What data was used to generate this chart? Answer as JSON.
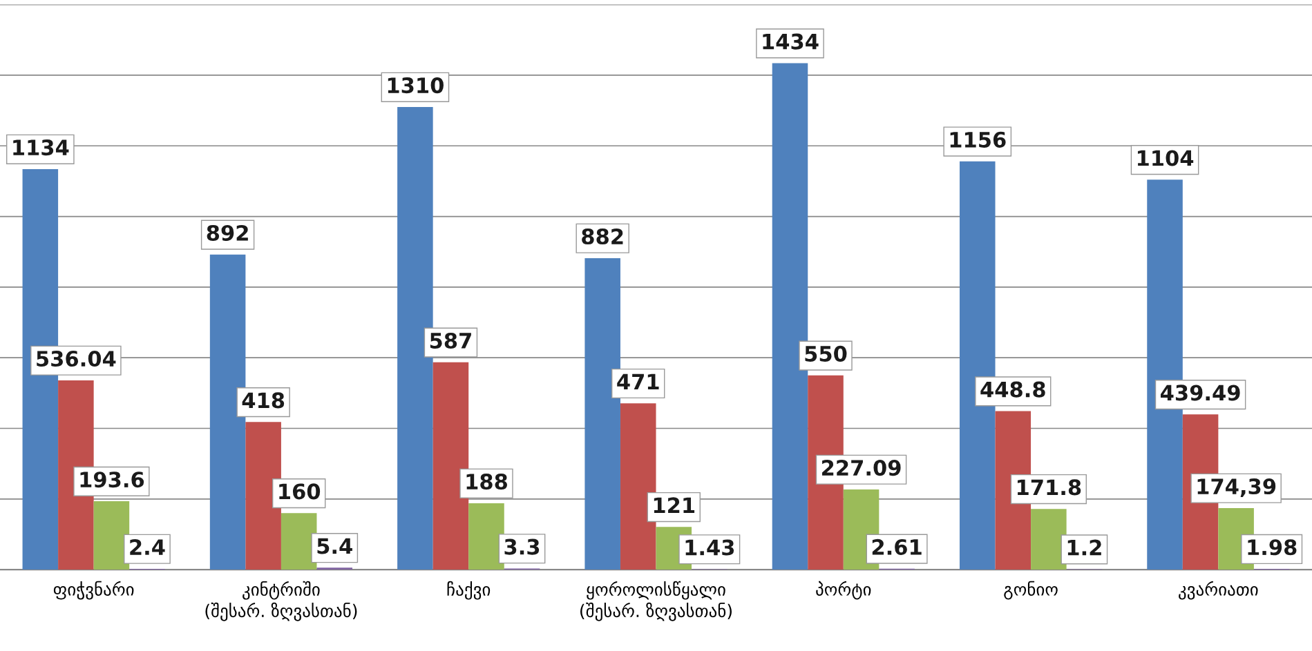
{
  "chart_data": {
    "type": "bar",
    "categories": [
      "ფიჭვნარი",
      "კინტრიში\n(შესარ. ზღვასთან)",
      "ჩაქვი",
      "ყოროლისწყალი\n(შესარ. ზღვასთან)",
      "პორტი",
      "გონიო",
      "კვარიათი"
    ],
    "series": [
      {
        "color": "#4f81bd",
        "values": [
          1134,
          892,
          1310,
          882,
          1434,
          1156,
          1104
        ]
      },
      {
        "color": "#c0504d",
        "values": [
          536.04,
          418,
          587,
          471,
          550,
          448.8,
          439.49
        ]
      },
      {
        "color": "#9bbb59",
        "values": [
          193.6,
          160,
          188,
          121,
          227.09,
          171.8,
          174.39
        ],
        "value_labels": [
          "193.6",
          "160",
          "188",
          "121",
          "227.09",
          "171.8",
          "174,39"
        ]
      },
      {
        "color": "#8064a2",
        "values": [
          2.4,
          5.4,
          3.3,
          1.43,
          2.61,
          1.2,
          1.98
        ]
      }
    ],
    "ylim": [
      0,
      1600
    ],
    "yticks": [
      {
        "value": 0,
        "label": null
      },
      {
        "value": 200,
        "label": null
      },
      {
        "value": 400,
        "label": null
      },
      {
        "value": 600,
        "label": null
      },
      {
        "value": 800,
        "label": null
      },
      {
        "value": 1000,
        "label": null
      },
      {
        "value": 1200,
        "label": null
      },
      {
        "value": 1400,
        "label": null
      },
      {
        "value": 1600,
        "label": null
      }
    ],
    "tick_labels": "x",
    "grid": "y",
    "data_labels": true
  }
}
